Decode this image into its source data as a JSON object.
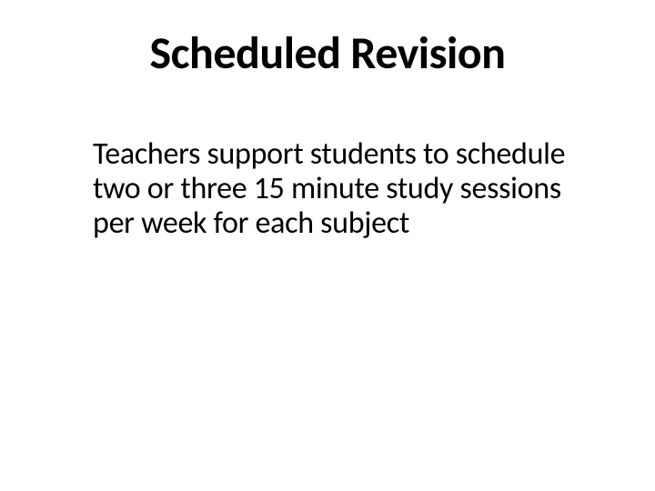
{
  "slide": {
    "title": "Scheduled Revision",
    "body": "Teachers support students to schedule two or three 15 minute study sessions per week for each subject",
    "title_fontsize": 50,
    "title_weight": 700,
    "body_fontsize": 34,
    "body_weight": 400,
    "text_color": "#000000",
    "background_color": "#ffffff",
    "font_family": "Calibri"
  }
}
